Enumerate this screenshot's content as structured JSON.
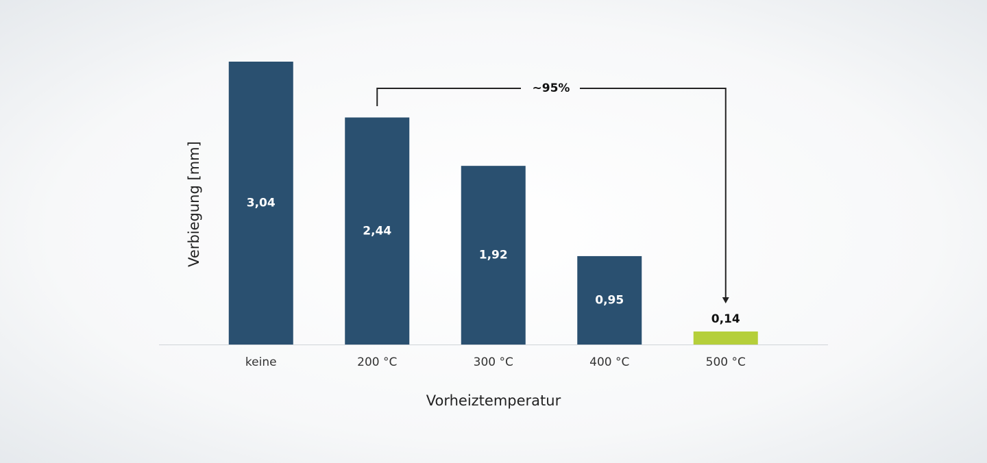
{
  "chart_data": {
    "type": "bar",
    "x_label": "Vorheiztemperatur",
    "y_label": "Verbiegung [mm]",
    "categories": [
      "keine",
      "200 °C",
      "300 °C",
      "400 °C",
      "500 °C"
    ],
    "values": [
      3.04,
      2.44,
      1.92,
      0.95,
      0.14
    ],
    "value_labels": [
      "3,04",
      "2,44",
      "1,92",
      "0,95",
      "0,14"
    ],
    "colors": [
      "#2a5070",
      "#2a5070",
      "#2a5070",
      "#2a5070",
      "#b5cf3a"
    ],
    "ylim": [
      0,
      3.04
    ],
    "annotation": "~95%"
  }
}
